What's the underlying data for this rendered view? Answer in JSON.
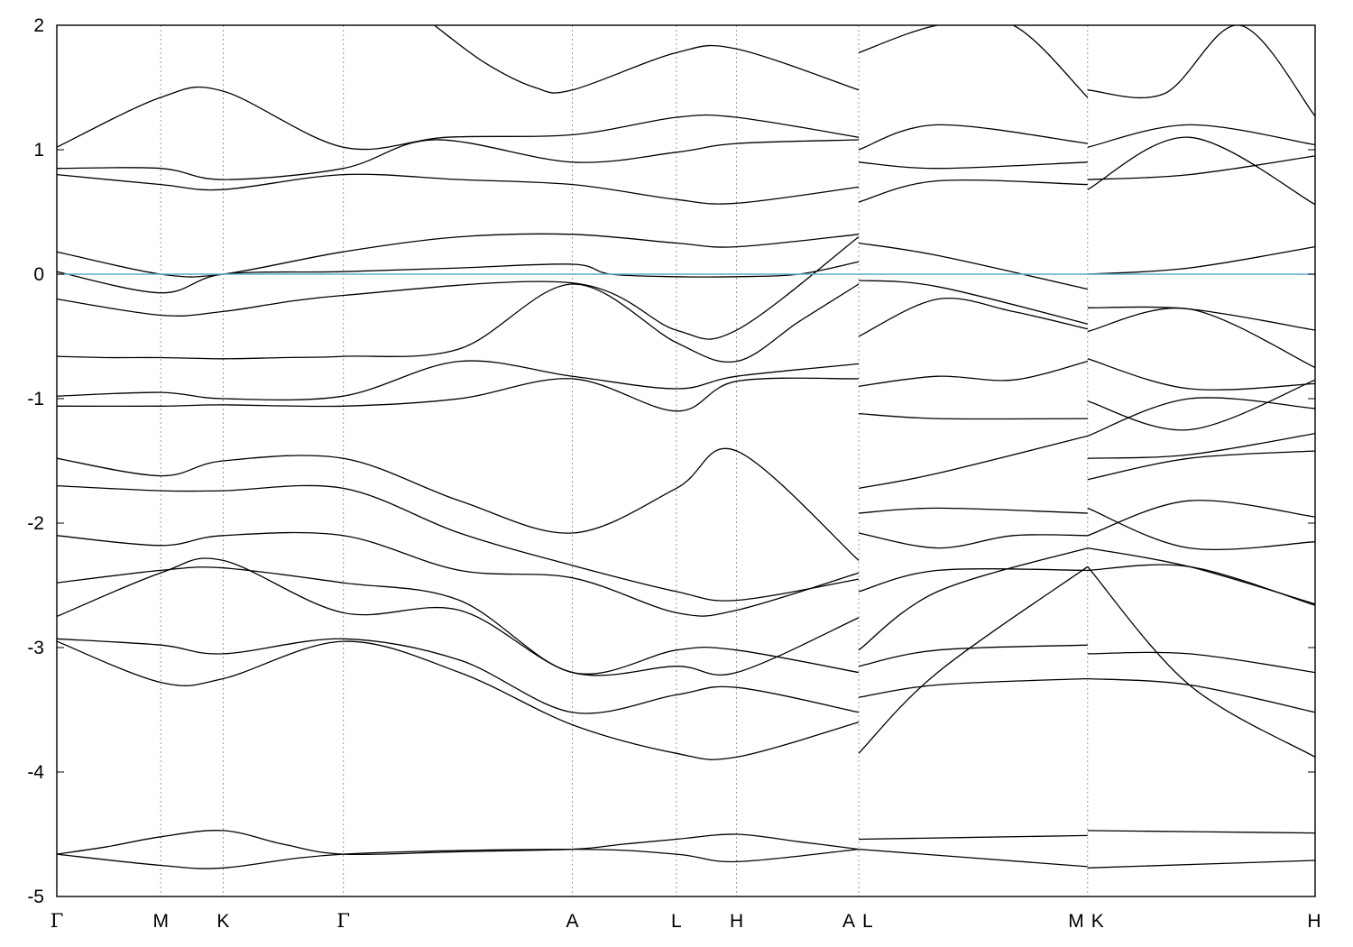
{
  "chart_data": {
    "type": "line",
    "title": "",
    "xlabel": "",
    "ylabel": "",
    "ylim": [
      -5,
      2
    ],
    "y_ticks": [
      "2",
      "1",
      "0",
      "-1",
      "-2",
      "-3",
      "-4",
      "-5"
    ],
    "grid": "dotted vertical lines at high-symmetry k-points",
    "kpoints": [
      {
        "label": "Γ",
        "pos": 0.0
      },
      {
        "label": "M",
        "pos": 0.0826
      },
      {
        "label": "K",
        "pos": 0.1322
      },
      {
        "label": "Γ",
        "pos": 0.2277
      },
      {
        "label": "A",
        "pos": 0.4097
      },
      {
        "label": "L",
        "pos": 0.4924
      },
      {
        "label": "H",
        "pos": 0.5402
      },
      {
        "label": "A",
        "pos": 0.6373
      },
      {
        "label": "L",
        "pos": 0.6373
      },
      {
        "label": "M",
        "pos": 0.8192
      },
      {
        "label": "K",
        "pos": 0.8192
      },
      {
        "label": "H",
        "pos": 1.0
      }
    ],
    "discontinuities_at": [
      "A|L",
      "M|K"
    ],
    "fermi_level": {
      "y": 0,
      "color": "#5aaec8"
    },
    "line_color": "#000000",
    "series": [
      {
        "x": [
          0,
          0.04,
          0.0826,
          0.1322,
          0.18,
          0.2277,
          0.32,
          0.4097,
          0.45,
          0.4924,
          0.5402,
          0.59,
          0.6373
        ],
        "y": [
          -4.66,
          -4.6,
          -4.52,
          -4.47,
          -4.58,
          -4.66,
          -4.64,
          -4.62,
          -4.58,
          -4.54,
          -4.5,
          -4.56,
          -4.62
        ]
      },
      {
        "x": [
          0,
          0.0826,
          0.1322,
          0.2277,
          0.4097,
          0.4924,
          0.5402,
          0.6373
        ],
        "y": [
          -4.66,
          -4.75,
          -4.77,
          -4.66,
          -4.62,
          -4.66,
          -4.72,
          -4.62
        ]
      },
      {
        "x": [
          0.6373,
          0.8192
        ],
        "y": [
          -4.54,
          -4.51
        ]
      },
      {
        "x": [
          0.6373,
          0.8192
        ],
        "y": [
          -4.62,
          -4.76
        ]
      },
      {
        "x": [
          0.8192,
          1.0
        ],
        "y": [
          -4.47,
          -4.49
        ]
      },
      {
        "x": [
          0.8192,
          1.0
        ],
        "y": [
          -4.77,
          -4.71
        ]
      },
      {
        "x": [
          0,
          0.04,
          0.0826,
          0.1322,
          0.18,
          0.2277,
          0.32,
          0.4097,
          0.4924,
          0.5402,
          0.59,
          0.6373
        ],
        "y": [
          -0.66,
          -0.67,
          -0.67,
          -0.68,
          -0.67,
          -0.66,
          -0.6,
          -0.08,
          -0.55,
          -0.7,
          -0.38,
          -0.08
        ]
      },
      {
        "x": [
          0,
          0.0826,
          0.1322,
          0.2277,
          0.3,
          0.4097,
          0.4924,
          0.5402,
          0.6373
        ],
        "y": [
          0.85,
          0.85,
          0.76,
          0.85,
          1.08,
          0.9,
          0.98,
          1.05,
          1.08
        ]
      },
      {
        "x": [
          0,
          0.0826,
          0.1322,
          0.2277,
          0.31,
          0.4097,
          0.4924,
          0.5402,
          0.6373
        ],
        "y": [
          1.02,
          1.42,
          1.47,
          1.02,
          1.1,
          1.12,
          1.26,
          1.26,
          1.1
        ]
      },
      {
        "x": [
          0,
          0.0826,
          0.1322,
          0.2277,
          0.32,
          0.4097,
          0.4924,
          0.5402,
          0.6373
        ],
        "y": [
          0.8,
          0.72,
          0.68,
          0.8,
          0.76,
          0.72,
          0.6,
          0.57,
          0.7
        ]
      },
      {
        "x": [
          0.3,
          0.34,
          0.38,
          0.4097,
          0.4924,
          0.5402,
          0.6373
        ],
        "y": [
          2.0,
          1.7,
          1.5,
          1.48,
          1.78,
          1.81,
          1.48
        ]
      },
      {
        "x": [
          0,
          0.0826,
          0.1322,
          0.2277,
          0.32,
          0.4097,
          0.4924,
          0.5402,
          0.6373
        ],
        "y": [
          0.18,
          0.0,
          0.0,
          0.18,
          0.3,
          0.32,
          0.25,
          0.22,
          0.32
        ]
      },
      {
        "x": [
          0,
          0.0826,
          0.1322,
          0.2277,
          0.32,
          0.4097,
          0.44,
          0.4924,
          0.5402,
          0.59,
          0.6373
        ],
        "y": [
          0.02,
          -0.15,
          0.0,
          0.02,
          0.05,
          0.08,
          0.0,
          -0.02,
          -0.02,
          0.0,
          0.1
        ]
      },
      {
        "x": [
          0,
          0.0826,
          0.1322,
          0.2277,
          0.4097,
          0.4924,
          0.5402,
          0.6373
        ],
        "y": [
          -0.2,
          -0.33,
          -0.3,
          -0.17,
          -0.07,
          -0.45,
          -0.45,
          0.3
        ]
      },
      {
        "x": [
          0,
          0.0826,
          0.1322,
          0.2277,
          0.32,
          0.4097,
          0.4924,
          0.5402,
          0.6373
        ],
        "y": [
          -0.98,
          -0.95,
          -1.0,
          -0.98,
          -0.7,
          -0.82,
          -0.92,
          -0.82,
          -0.72
        ]
      },
      {
        "x": [
          0,
          0.0826,
          0.1322,
          0.2277,
          0.32,
          0.4097,
          0.4924,
          0.5402,
          0.6373
        ],
        "y": [
          -1.06,
          -1.06,
          -1.05,
          -1.06,
          -1.0,
          -0.84,
          -1.1,
          -0.86,
          -0.84
        ]
      },
      {
        "x": [
          0,
          0.0826,
          0.1322,
          0.2277,
          0.32,
          0.4097,
          0.4924,
          0.5402,
          0.6373
        ],
        "y": [
          -1.48,
          -1.62,
          -1.5,
          -1.48,
          -1.82,
          -2.08,
          -1.72,
          -1.42,
          -2.3
        ]
      },
      {
        "x": [
          0,
          0.0826,
          0.1322,
          0.2277,
          0.32,
          0.4097,
          0.4924,
          0.5402,
          0.6373
        ],
        "y": [
          -1.7,
          -1.74,
          -1.74,
          -1.72,
          -2.08,
          -2.34,
          -2.55,
          -2.62,
          -2.45
        ]
      },
      {
        "x": [
          0,
          0.0826,
          0.1322,
          0.2277,
          0.32,
          0.4097,
          0.4924,
          0.5402,
          0.6373
        ],
        "y": [
          -2.1,
          -2.18,
          -2.1,
          -2.1,
          -2.38,
          -2.44,
          -2.72,
          -2.7,
          -2.4
        ]
      },
      {
        "x": [
          0,
          0.0826,
          0.1322,
          0.2277,
          0.32,
          0.4097,
          0.4924,
          0.5402,
          0.6373
        ],
        "y": [
          -2.48,
          -2.38,
          -2.36,
          -2.48,
          -2.62,
          -3.2,
          -3.02,
          -3.02,
          -3.2
        ]
      },
      {
        "x": [
          0,
          0.0826,
          0.1322,
          0.2277,
          0.32,
          0.4097,
          0.4924,
          0.5402,
          0.6373
        ],
        "y": [
          -2.75,
          -2.4,
          -2.3,
          -2.72,
          -2.7,
          -3.2,
          -3.15,
          -3.2,
          -2.76
        ]
      },
      {
        "x": [
          0,
          0.0826,
          0.1322,
          0.2277,
          0.32,
          0.4097,
          0.4924,
          0.5402,
          0.6373
        ],
        "y": [
          -2.93,
          -2.98,
          -3.05,
          -2.93,
          -3.1,
          -3.52,
          -3.38,
          -3.32,
          -3.52
        ]
      },
      {
        "x": [
          0,
          0.0826,
          0.1322,
          0.2277,
          0.32,
          0.4097,
          0.4924,
          0.5402,
          0.6373
        ],
        "y": [
          -2.95,
          -3.28,
          -3.25,
          -2.95,
          -3.2,
          -3.62,
          -3.85,
          -3.88,
          -3.6
        ]
      },
      {
        "x": [
          0.6373,
          0.7,
          0.76,
          0.8192
        ],
        "y": [
          1.78,
          2.0,
          2.0,
          1.42
        ]
      },
      {
        "x": [
          0.6373,
          0.7,
          0.8192
        ],
        "y": [
          1.0,
          1.2,
          1.05
        ]
      },
      {
        "x": [
          0.6373,
          0.7,
          0.8192
        ],
        "y": [
          0.9,
          0.85,
          0.9
        ]
      },
      {
        "x": [
          0.6373,
          0.7,
          0.8192
        ],
        "y": [
          0.58,
          0.75,
          0.72
        ]
      },
      {
        "x": [
          0.6373,
          0.7,
          0.8192
        ],
        "y": [
          0.25,
          0.15,
          -0.12
        ]
      },
      {
        "x": [
          0.6373,
          0.7,
          0.8192
        ],
        "y": [
          -0.05,
          -0.1,
          -0.4
        ]
      },
      {
        "x": [
          0.6373,
          0.7,
          0.76,
          0.8192
        ],
        "y": [
          -0.5,
          -0.2,
          -0.3,
          -0.44
        ]
      },
      {
        "x": [
          0.6373,
          0.7,
          0.76,
          0.8192
        ],
        "y": [
          -0.9,
          -0.82,
          -0.85,
          -0.7
        ]
      },
      {
        "x": [
          0.6373,
          0.7,
          0.8192
        ],
        "y": [
          -1.12,
          -1.16,
          -1.16
        ]
      },
      {
        "x": [
          0.6373,
          0.7,
          0.8192
        ],
        "y": [
          -1.72,
          -1.6,
          -1.3
        ]
      },
      {
        "x": [
          0.6373,
          0.7,
          0.8192
        ],
        "y": [
          -1.92,
          -1.88,
          -1.92
        ]
      },
      {
        "x": [
          0.6373,
          0.7,
          0.76,
          0.8192
        ],
        "y": [
          -2.08,
          -2.2,
          -2.1,
          -2.1
        ]
      },
      {
        "x": [
          0.6373,
          0.7,
          0.8192
        ],
        "y": [
          -2.55,
          -2.38,
          -2.38
        ]
      },
      {
        "x": [
          0.6373,
          0.7,
          0.8192
        ],
        "y": [
          -3.02,
          -2.55,
          -2.2
        ]
      },
      {
        "x": [
          0.6373,
          0.7,
          0.8192
        ],
        "y": [
          -3.15,
          -3.02,
          -2.98
        ]
      },
      {
        "x": [
          0.6373,
          0.7,
          0.8192
        ],
        "y": [
          -3.4,
          -3.3,
          -3.25
        ]
      },
      {
        "x": [
          0.6373,
          0.7,
          0.8192
        ],
        "y": [
          -3.85,
          -3.2,
          -2.35
        ]
      },
      {
        "x": [
          0.8192,
          0.88,
          0.94,
          1.0
        ],
        "y": [
          1.48,
          1.45,
          2.0,
          1.27
        ]
      },
      {
        "x": [
          0.8192,
          0.9,
          1.0
        ],
        "y": [
          1.02,
          1.2,
          1.04
        ]
      },
      {
        "x": [
          0.8192,
          0.9,
          1.0
        ],
        "y": [
          0.76,
          0.8,
          0.95
        ]
      },
      {
        "x": [
          0.8192,
          0.9,
          1.0
        ],
        "y": [
          0.68,
          1.1,
          0.56
        ]
      },
      {
        "x": [
          0.8192,
          0.9,
          1.0
        ],
        "y": [
          0.0,
          0.05,
          0.22
        ]
      },
      {
        "x": [
          0.8192,
          0.9,
          1.0
        ],
        "y": [
          -0.27,
          -0.28,
          -0.45
        ]
      },
      {
        "x": [
          0.8192,
          0.9,
          1.0
        ],
        "y": [
          -0.46,
          -0.28,
          -0.75
        ]
      },
      {
        "x": [
          0.8192,
          0.9,
          1.0
        ],
        "y": [
          -0.68,
          -0.92,
          -0.88
        ]
      },
      {
        "x": [
          0.8192,
          0.9,
          1.0
        ],
        "y": [
          -1.02,
          -1.25,
          -0.85
        ]
      },
      {
        "x": [
          0.8192,
          0.9,
          1.0
        ],
        "y": [
          -1.3,
          -1.0,
          -1.08
        ]
      },
      {
        "x": [
          0.8192,
          0.9,
          1.0
        ],
        "y": [
          -1.48,
          -1.45,
          -1.28
        ]
      },
      {
        "x": [
          0.8192,
          0.9,
          1.0
        ],
        "y": [
          -1.65,
          -1.48,
          -1.42
        ]
      },
      {
        "x": [
          0.8192,
          0.9,
          1.0
        ],
        "y": [
          -1.88,
          -2.2,
          -2.15
        ]
      },
      {
        "x": [
          0.8192,
          0.9,
          1.0
        ],
        "y": [
          -2.1,
          -1.82,
          -1.95
        ]
      },
      {
        "x": [
          0.8192,
          0.9,
          1.0
        ],
        "y": [
          -2.2,
          -2.35,
          -2.65
        ]
      },
      {
        "x": [
          0.8192,
          0.9,
          1.0
        ],
        "y": [
          -2.38,
          -2.35,
          -2.66
        ]
      },
      {
        "x": [
          0.8192,
          0.9,
          1.0
        ],
        "y": [
          -3.05,
          -3.05,
          -3.2
        ]
      },
      {
        "x": [
          0.8192,
          0.9,
          1.0
        ],
        "y": [
          -3.25,
          -3.3,
          -3.52
        ]
      },
      {
        "x": [
          0.8192,
          0.9,
          1.0
        ],
        "y": [
          -2.35,
          -3.3,
          -3.88
        ]
      }
    ]
  }
}
